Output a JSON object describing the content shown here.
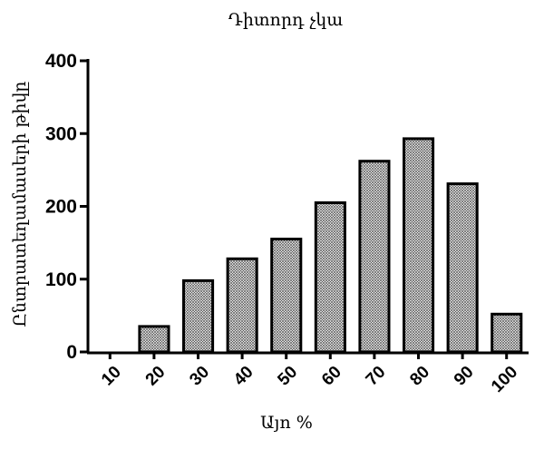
{
  "chart_data": {
    "type": "bar",
    "title": "Դիտորդ չկա",
    "xlabel": "Այո %",
    "ylabel": "Ընտրատեղամասերի թիվը",
    "categories": [
      "10",
      "20",
      "30",
      "40",
      "50",
      "60",
      "70",
      "80",
      "90",
      "100"
    ],
    "values": [
      0,
      35,
      98,
      128,
      155,
      205,
      262,
      293,
      231,
      52
    ],
    "ylim": [
      0,
      400
    ],
    "yticks": [
      "0",
      "100",
      "200",
      "300",
      "400"
    ],
    "grid": false,
    "bar_pattern": "crosshatch",
    "bar_color": "#000000"
  }
}
